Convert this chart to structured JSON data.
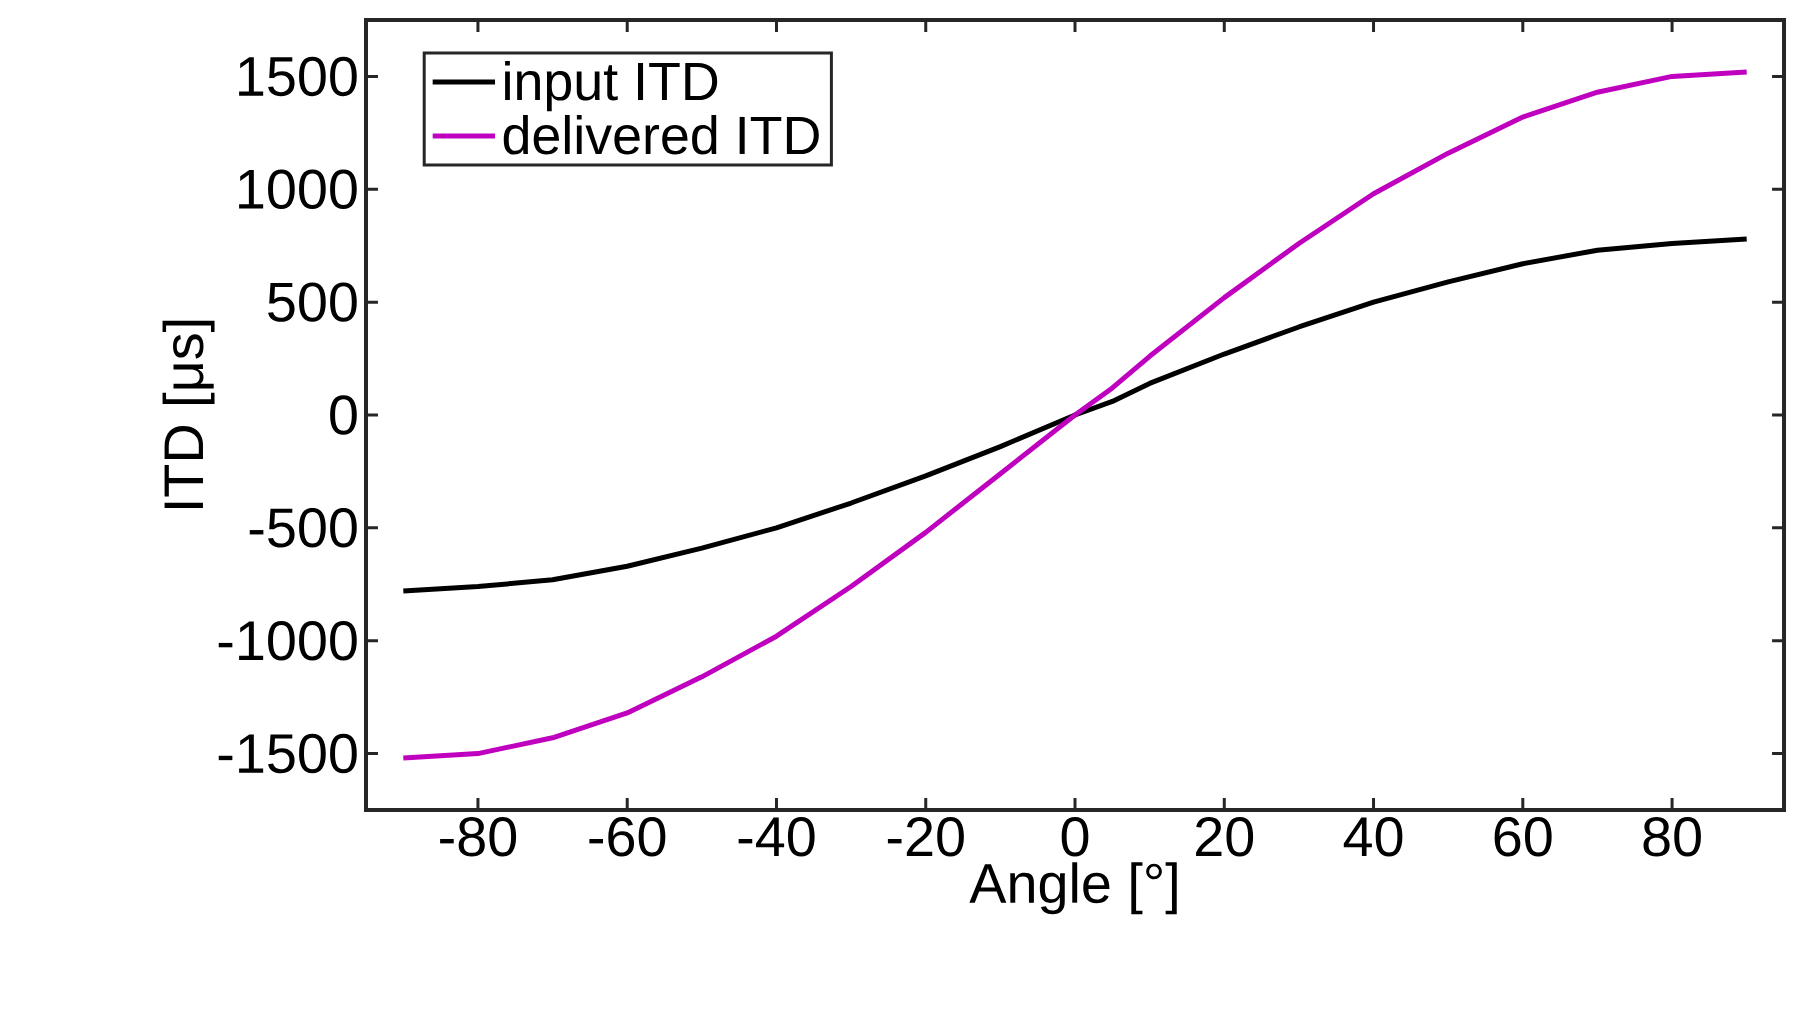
{
  "chart_data": {
    "type": "line",
    "xlabel": "Angle [°]",
    "ylabel": "ITD [μs]",
    "x": [
      -90,
      -80,
      -70,
      -60,
      -50,
      -40,
      -30,
      -20,
      -10,
      0,
      5,
      10,
      20,
      30,
      40,
      50,
      60,
      70,
      80,
      90
    ],
    "series": [
      {
        "name": "input ITD",
        "color": "#000000",
        "values": [
          -780,
          -760,
          -730,
          -670,
          -590,
          -500,
          -390,
          -270,
          -140,
          0,
          60,
          140,
          270,
          390,
          500,
          590,
          670,
          730,
          760,
          780
        ]
      },
      {
        "name": "delivered ITD",
        "color": "#bf00bf",
        "values": [
          -1520,
          -1500,
          -1430,
          -1320,
          -1160,
          -980,
          -760,
          -520,
          -260,
          0,
          120,
          260,
          520,
          760,
          980,
          1160,
          1320,
          1430,
          1500,
          1520
        ]
      }
    ],
    "xlim": [
      -95,
      95
    ],
    "ylim": [
      -1750,
      1750
    ],
    "xticks": [
      -80,
      -60,
      -40,
      -20,
      0,
      20,
      40,
      60,
      80
    ],
    "yticks": [
      -1500,
      -1000,
      -500,
      0,
      500,
      1000,
      1500
    ],
    "legend": "top left",
    "grid": false,
    "marker": "none",
    "line_style": "solid"
  }
}
